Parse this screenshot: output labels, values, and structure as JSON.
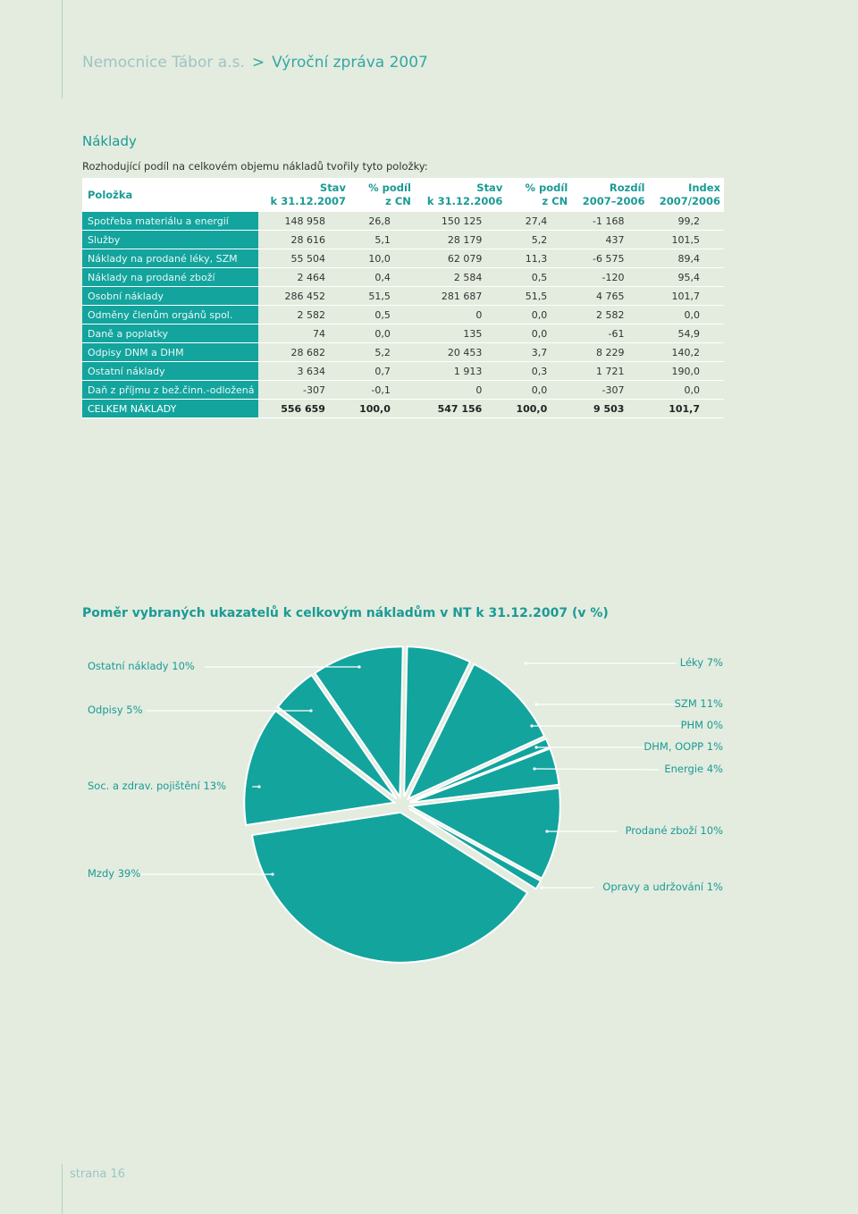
{
  "header": {
    "org": "Nemocnice Tábor a.s.",
    "separator": ">",
    "report": "Výroční zpráva 2007"
  },
  "section": {
    "title": "Náklady",
    "intro": "Rozhodující podíl na celkovém objemu nákladů tvořily tyto položky:"
  },
  "table": {
    "headers": [
      [
        "Položka",
        ""
      ],
      [
        "Stav",
        "k 31.12.2007"
      ],
      [
        "% podíl",
        "z CN"
      ],
      [
        "Stav",
        "k 31.12.2006"
      ],
      [
        "% podíl",
        "z CN"
      ],
      [
        "Rozdíl",
        "2007–2006"
      ],
      [
        "Index",
        "2007/2006"
      ]
    ],
    "rows": [
      [
        "Spotřeba materiálu a energií",
        "148 958",
        "26,8",
        "150 125",
        "27,4",
        "-1 168",
        "99,2"
      ],
      [
        "Služby",
        "28 616",
        "5,1",
        "28 179",
        "5,2",
        "437",
        "101,5"
      ],
      [
        "Náklady na prodané léky, SZM",
        "55 504",
        "10,0",
        "62 079",
        "11,3",
        "-6 575",
        "89,4"
      ],
      [
        "Náklady na prodané zboží",
        "2 464",
        "0,4",
        "2 584",
        "0,5",
        "-120",
        "95,4"
      ],
      [
        "Osobní náklady",
        "286 452",
        "51,5",
        "281 687",
        "51,5",
        "4 765",
        "101,7"
      ],
      [
        "Odměny členům orgánů spol.",
        "2 582",
        "0,5",
        "0",
        "0,0",
        "2 582",
        "0,0"
      ],
      [
        "Daně a poplatky",
        "74",
        "0,0",
        "135",
        "0,0",
        "-61",
        "54,9"
      ],
      [
        "Odpisy DNM a DHM",
        "28 682",
        "5,2",
        "20 453",
        "3,7",
        "8 229",
        "140,2"
      ],
      [
        "Ostatní náklady",
        "3 634",
        "0,7",
        "1 913",
        "0,3",
        "1 721",
        "190,0"
      ],
      [
        "Daň z příjmu z bež.činn.-odložená",
        "-307",
        "-0,1",
        "0",
        "0,0",
        "-307",
        "0,0"
      ]
    ],
    "total": [
      "CELKEM NÁKLADY",
      "556 659",
      "100,0",
      "547 156",
      "100,0",
      "9 503",
      "101,7"
    ]
  },
  "chart_data": {
    "type": "pie",
    "title": "Poměr vybraných ukazatelů k celkovým nákladům v NT k 31.12.2007 (v %)",
    "slices": [
      {
        "label": "Léky 7%",
        "value": 7
      },
      {
        "label": "SZM 11%",
        "value": 11
      },
      {
        "label": "PHM 0%",
        "value": 0
      },
      {
        "label": "DHM, OOPP 1%",
        "value": 1
      },
      {
        "label": "Energie 4%",
        "value": 4
      },
      {
        "label": "Prodané zboží 10%",
        "value": 10
      },
      {
        "label": "Opravy a udržování 1%",
        "value": 1
      },
      {
        "label": "Mzdy 39%",
        "value": 39
      },
      {
        "label": "Soc. a zdrav. pojištění 13%",
        "value": 13
      },
      {
        "label": "Odpisy 5%",
        "value": 5
      },
      {
        "label": "Ostatní náklady 10%",
        "value": 10
      }
    ],
    "color": "#13a49e"
  },
  "footer": {
    "page": "strana 16"
  }
}
